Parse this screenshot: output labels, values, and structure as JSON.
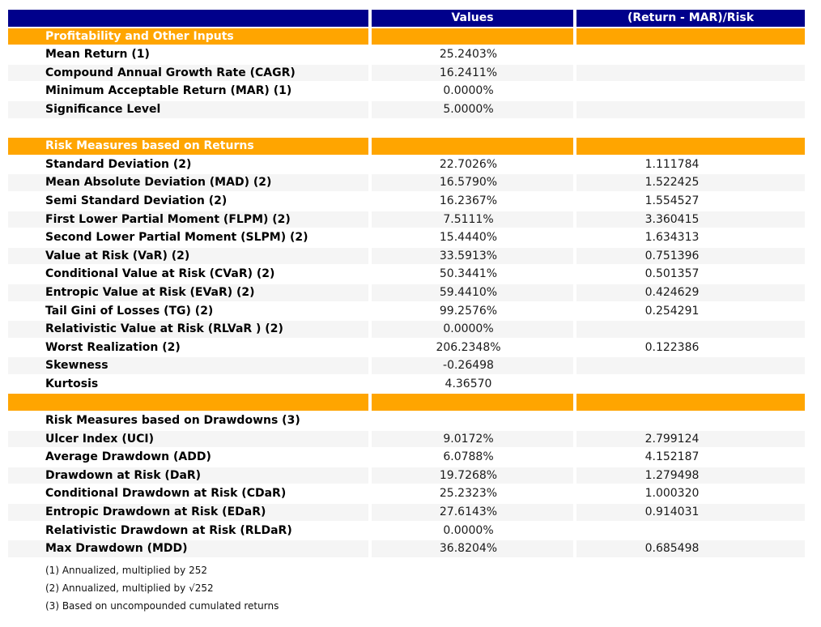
{
  "colors": {
    "navy": "#00008B",
    "orange": "#FFA500",
    "stripe": "#F5F5F5",
    "value_ink": "#1a1a1a"
  },
  "chart_data": {
    "type": "table",
    "title": "",
    "columns": [
      "",
      "Values",
      "(Return - MAR)/Risk"
    ],
    "rows": [
      {
        "type": "section",
        "label": "Profitability and Other Inputs"
      },
      {
        "type": "data",
        "label": "Mean Return (1)",
        "value": "25.2403%",
        "ratio": ""
      },
      {
        "type": "data",
        "label": "Compound Annual Growth Rate (CAGR)",
        "value": "16.2411%",
        "ratio": ""
      },
      {
        "type": "data",
        "label": "Minimum Acceptable Return (MAR) (1)",
        "value": "0.0000%",
        "ratio": ""
      },
      {
        "type": "data",
        "label": "Significance Level",
        "value": "5.0000%",
        "ratio": ""
      },
      {
        "type": "spacer",
        "label": "",
        "value": "",
        "ratio": ""
      },
      {
        "type": "section",
        "label": "Risk Measures based on Returns"
      },
      {
        "type": "data",
        "label": "Standard Deviation (2)",
        "value": "22.7026%",
        "ratio": "1.111784"
      },
      {
        "type": "data",
        "label": "Mean Absolute Deviation (MAD) (2)",
        "value": "16.5790%",
        "ratio": "1.522425"
      },
      {
        "type": "data",
        "label": "Semi Standard Deviation (2)",
        "value": "16.2367%",
        "ratio": "1.554527"
      },
      {
        "type": "data",
        "label": "First Lower Partial Moment (FLPM) (2)",
        "value": "7.5111%",
        "ratio": "3.360415"
      },
      {
        "type": "data",
        "label": "Second Lower Partial Moment (SLPM) (2)",
        "value": "15.4440%",
        "ratio": "1.634313"
      },
      {
        "type": "data",
        "label": "Value at Risk (VaR) (2)",
        "value": "33.5913%",
        "ratio": "0.751396"
      },
      {
        "type": "data",
        "label": "Conditional Value at Risk (CVaR) (2)",
        "value": "50.3441%",
        "ratio": "0.501357"
      },
      {
        "type": "data",
        "label": "Entropic Value at Risk (EVaR) (2)",
        "value": "59.4410%",
        "ratio": "0.424629"
      },
      {
        "type": "data",
        "label": "Tail Gini of Losses (TG) (2)",
        "value": "99.2576%",
        "ratio": "0.254291"
      },
      {
        "type": "data",
        "label": "Relativistic Value at Risk (RLVaR ) (2)",
        "value": "0.0000%",
        "ratio": ""
      },
      {
        "type": "data",
        "label": "Worst Realization (2)",
        "value": "206.2348%",
        "ratio": "0.122386"
      },
      {
        "type": "data",
        "label": "Skewness",
        "value": "-0.26498",
        "ratio": ""
      },
      {
        "type": "data",
        "label": "Kurtosis",
        "value": "4.36570",
        "ratio": ""
      },
      {
        "type": "section",
        "label": ""
      },
      {
        "type": "data",
        "label": "Risk Measures based on Drawdowns (3)",
        "value": "",
        "ratio": ""
      },
      {
        "type": "data",
        "label": "Ulcer Index (UCI)",
        "value": "9.0172%",
        "ratio": "2.799124"
      },
      {
        "type": "data",
        "label": "Average Drawdown (ADD)",
        "value": "6.0788%",
        "ratio": "4.152187"
      },
      {
        "type": "data",
        "label": "Drawdown at Risk (DaR)",
        "value": "19.7268%",
        "ratio": "1.279498"
      },
      {
        "type": "data",
        "label": "Conditional Drawdown at Risk (CDaR)",
        "value": "25.2323%",
        "ratio": "1.000320"
      },
      {
        "type": "data",
        "label": "Entropic Drawdown at Risk (EDaR)",
        "value": "27.6143%",
        "ratio": "0.914031"
      },
      {
        "type": "data",
        "label": "Relativistic Drawdown at Risk (RLDaR)",
        "value": "0.0000%",
        "ratio": ""
      },
      {
        "type": "data",
        "label": "Max Drawdown (MDD)",
        "value": "36.8204%",
        "ratio": "0.685498"
      }
    ],
    "footnotes": [
      "(1) Annualized, multiplied by 252",
      "(2) Annualized, multiplied by √252",
      "(3) Based on uncompounded cumulated returns"
    ],
    "layout_hints": {
      "grid": false,
      "legend": false
    }
  }
}
